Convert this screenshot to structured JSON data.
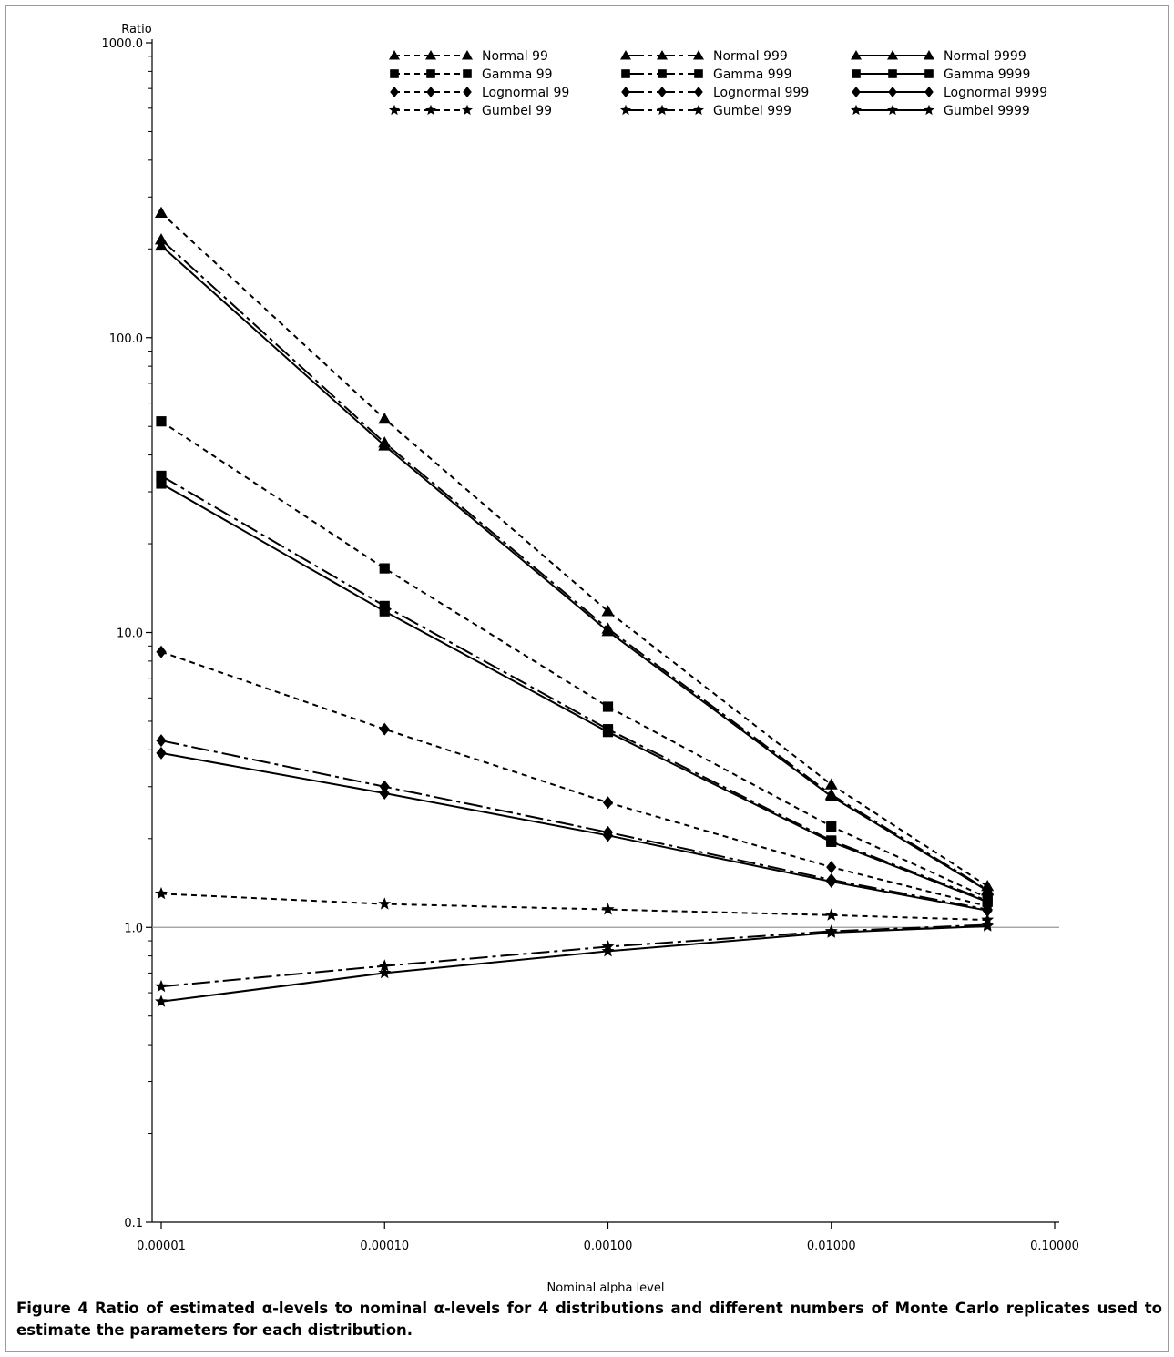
{
  "chart_data": {
    "type": "line",
    "x_scale": "log",
    "y_scale": "log",
    "x": [
      1e-05,
      0.0001,
      0.001,
      0.01,
      0.05
    ],
    "xlim": [
      1e-05,
      0.1
    ],
    "ylim": [
      0.1,
      1000
    ],
    "xlabel": "Nominal alpha level",
    "ylabel": "Ratio",
    "x_ticks": [
      "0.00001",
      "0.00010",
      "0.00100",
      "0.01000",
      "0.10000"
    ],
    "y_ticks": [
      "1000.0",
      "100.0",
      "10.0",
      "1.0",
      "0.1"
    ],
    "reference_line": 1.0,
    "legend_position": "top",
    "series": [
      {
        "name": "Normal 99",
        "marker": "triangle",
        "line": "short-dash",
        "values": [
          265,
          53,
          11.8,
          3.05,
          1.38
        ]
      },
      {
        "name": "Gamma 99",
        "marker": "square",
        "line": "short-dash",
        "values": [
          52,
          16.5,
          5.6,
          2.2,
          1.26
        ]
      },
      {
        "name": "Lognormal 99",
        "marker": "diamond",
        "line": "short-dash",
        "values": [
          8.6,
          4.7,
          2.65,
          1.6,
          1.18
        ]
      },
      {
        "name": "Gumbel 99",
        "marker": "star",
        "line": "short-dash",
        "values": [
          1.3,
          1.2,
          1.15,
          1.1,
          1.06
        ]
      },
      {
        "name": "Normal 999",
        "marker": "triangle",
        "line": "long-dash",
        "values": [
          215,
          44,
          10.3,
          2.82,
          1.34
        ]
      },
      {
        "name": "Gamma 999",
        "marker": "square",
        "line": "long-dash",
        "values": [
          34,
          12.3,
          4.7,
          1.97,
          1.23
        ]
      },
      {
        "name": "Lognormal 999",
        "marker": "diamond",
        "line": "long-dash",
        "values": [
          4.3,
          3.0,
          2.1,
          1.45,
          1.15
        ]
      },
      {
        "name": "Gumbel 999",
        "marker": "star",
        "line": "long-dash",
        "values": [
          0.63,
          0.74,
          0.86,
          0.97,
          1.02
        ]
      },
      {
        "name": "Normal 9999",
        "marker": "triangle",
        "line": "solid",
        "values": [
          205,
          43,
          10.1,
          2.78,
          1.33
        ]
      },
      {
        "name": "Gamma 9999",
        "marker": "square",
        "line": "solid",
        "values": [
          32,
          11.8,
          4.6,
          1.95,
          1.22
        ]
      },
      {
        "name": "Lognormal 9999",
        "marker": "diamond",
        "line": "solid",
        "values": [
          3.9,
          2.85,
          2.05,
          1.43,
          1.14
        ]
      },
      {
        "name": "Gumbel 9999",
        "marker": "star",
        "line": "solid",
        "values": [
          0.56,
          0.7,
          0.83,
          0.96,
          1.01
        ]
      }
    ]
  },
  "caption": {
    "label": "Figure 4",
    "text": "Ratio of estimated α-levels to nominal α-levels for 4 distributions and different numbers of Monte Carlo replicates used to estimate the parameters for each distribution."
  }
}
